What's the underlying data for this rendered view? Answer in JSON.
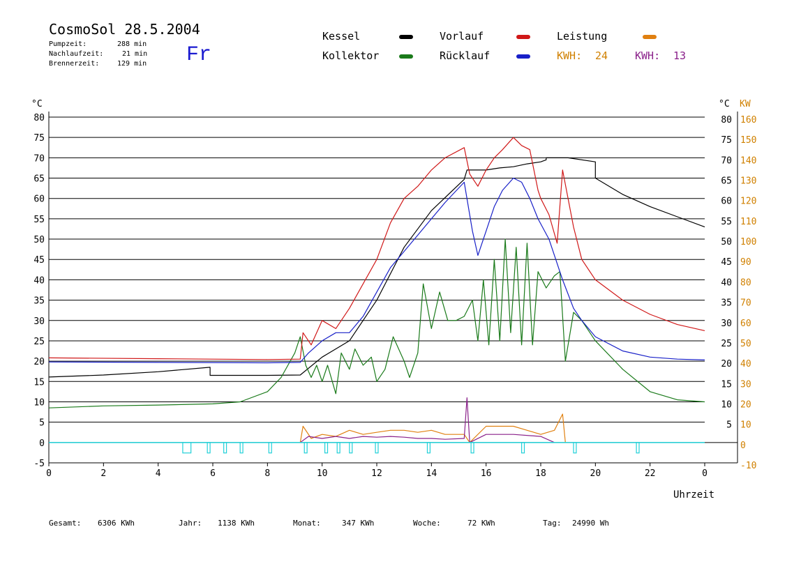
{
  "header": {
    "title": "CosmoSol 28.5.2004",
    "stats": [
      {
        "label": "Pumpzeit:",
        "value": "288 min"
      },
      {
        "label": "Nachlaufzeit:",
        "value": "21 min"
      },
      {
        "label": "Brennerzeit:",
        "value": "129 min"
      }
    ],
    "day": "Fr"
  },
  "legend": {
    "kessel": "Kessel",
    "kollektor": "Kollektor",
    "vorlauf": "Vorlauf",
    "ruecklauf": "Rücklauf",
    "leistung": "Leistung",
    "kwh1_label": "KWH:",
    "kwh1_value": "24",
    "kwh2_label": "KWH:",
    "kwh2_value": "13"
  },
  "colors": {
    "kessel": "#000000",
    "kollektor": "#1a7a1a",
    "vorlauf": "#d01818",
    "ruecklauf": "#1820c8",
    "leistung": "#e08010",
    "kwh2": "#8a208a",
    "pump": "#20d0d8",
    "right_axis": "#d08000"
  },
  "footer": [
    {
      "label": "Gesamt:",
      "value": "6306 KWh"
    },
    {
      "label": "Jahr:",
      "value": "1138 KWh"
    },
    {
      "label": "Monat:",
      "value": "347 KWh"
    },
    {
      "label": "Woche:",
      "value": "72 KWh"
    },
    {
      "label": "Tag:",
      "value": "24990 Wh"
    }
  ],
  "chart_data": {
    "type": "line",
    "xlabel": "Uhrzeit",
    "ylabel_left": "°C",
    "ylabel_right_1": "°C",
    "ylabel_right_2": "KW",
    "xlim": [
      0,
      24
    ],
    "ylim": [
      -5,
      80
    ],
    "x_ticks": [
      "0",
      "2",
      "4",
      "6",
      "8",
      "10",
      "12",
      "14",
      "16",
      "18",
      "20",
      "22",
      "0"
    ],
    "y_ticks_left": [
      "80",
      "75",
      "70",
      "65",
      "60",
      "55",
      "50",
      "45",
      "40",
      "35",
      "30",
      "25",
      "20",
      "15",
      "10",
      "5",
      "0",
      "-5"
    ],
    "y_ticks_right_temp": [
      "80",
      "75",
      "70",
      "65",
      "60",
      "55",
      "50",
      "45",
      "40",
      "35",
      "30",
      "25",
      "20",
      "15",
      "10",
      "5"
    ],
    "y_ticks_right_power": [
      "160",
      "150",
      "140",
      "130",
      "120",
      "110",
      "100",
      "90",
      "80",
      "70",
      "60",
      "50",
      "40",
      "30",
      "20",
      "10",
      "0",
      "-10"
    ],
    "grid": true,
    "series": [
      {
        "name": "Kessel",
        "color": "#000000",
        "points": [
          [
            0,
            16.1
          ],
          [
            2,
            16.6
          ],
          [
            4,
            17.4
          ],
          [
            5.9,
            18.5
          ],
          [
            5.9,
            16.5
          ],
          [
            8,
            16.5
          ],
          [
            9.2,
            16.6
          ],
          [
            10,
            21
          ],
          [
            11,
            25
          ],
          [
            12,
            35
          ],
          [
            13,
            48
          ],
          [
            14,
            57
          ],
          [
            15.2,
            64.7
          ],
          [
            15.3,
            67
          ],
          [
            16,
            67
          ],
          [
            16.5,
            67.5
          ],
          [
            17,
            67.8
          ],
          [
            17.5,
            68.5
          ],
          [
            18,
            69
          ],
          [
            18.2,
            69.5
          ],
          [
            18.2,
            70
          ],
          [
            19,
            70
          ],
          [
            20,
            69
          ],
          [
            20,
            65
          ],
          [
            21,
            61
          ],
          [
            22,
            58
          ],
          [
            23,
            55.5
          ],
          [
            24,
            53
          ]
        ]
      },
      {
        "name": "Kollektor",
        "color": "#1a7a1a",
        "points": [
          [
            0,
            8.5
          ],
          [
            2,
            9
          ],
          [
            4,
            9.2
          ],
          [
            6,
            9.5
          ],
          [
            7,
            10
          ],
          [
            8,
            12.5
          ],
          [
            8.5,
            16
          ],
          [
            9,
            22
          ],
          [
            9.2,
            26
          ],
          [
            9.4,
            19
          ],
          [
            9.6,
            16
          ],
          [
            9.8,
            19
          ],
          [
            10,
            15
          ],
          [
            10.2,
            19
          ],
          [
            10.5,
            12
          ],
          [
            10.7,
            22
          ],
          [
            11,
            18
          ],
          [
            11.2,
            23
          ],
          [
            11.5,
            19
          ],
          [
            11.8,
            21
          ],
          [
            12,
            15
          ],
          [
            12.3,
            18
          ],
          [
            12.6,
            26
          ],
          [
            13,
            20
          ],
          [
            13.2,
            16
          ],
          [
            13.5,
            22
          ],
          [
            13.7,
            39
          ],
          [
            14,
            28
          ],
          [
            14.3,
            37
          ],
          [
            14.6,
            30
          ],
          [
            14.9,
            30
          ],
          [
            15.2,
            31
          ],
          [
            15.5,
            35
          ],
          [
            15.7,
            25
          ],
          [
            15.9,
            40
          ],
          [
            16.1,
            24
          ],
          [
            16.3,
            45
          ],
          [
            16.5,
            25
          ],
          [
            16.7,
            50
          ],
          [
            16.9,
            27
          ],
          [
            17.1,
            48
          ],
          [
            17.3,
            24
          ],
          [
            17.5,
            49
          ],
          [
            17.7,
            24
          ],
          [
            17.9,
            42
          ],
          [
            18.2,
            38
          ],
          [
            18.5,
            41
          ],
          [
            18.7,
            42
          ],
          [
            18.9,
            20
          ],
          [
            19.2,
            32
          ],
          [
            19.5,
            30
          ],
          [
            20,
            25
          ],
          [
            21,
            18
          ],
          [
            22,
            12.5
          ],
          [
            23,
            10.5
          ],
          [
            24,
            10
          ]
        ]
      },
      {
        "name": "Vorlauf",
        "color": "#d01818",
        "points": [
          [
            0,
            20.8
          ],
          [
            4,
            20.6
          ],
          [
            8,
            20.4
          ],
          [
            9.2,
            20.5
          ],
          [
            9.3,
            27
          ],
          [
            9.6,
            24
          ],
          [
            10,
            30
          ],
          [
            10.5,
            28
          ],
          [
            11,
            33
          ],
          [
            11.5,
            39
          ],
          [
            12,
            45
          ],
          [
            12.5,
            54
          ],
          [
            13,
            60
          ],
          [
            13.5,
            63
          ],
          [
            14,
            67
          ],
          [
            14.5,
            70
          ],
          [
            15.2,
            72.5
          ],
          [
            15.4,
            66
          ],
          [
            15.7,
            63
          ],
          [
            16,
            67
          ],
          [
            16.3,
            70
          ],
          [
            16.6,
            72
          ],
          [
            17,
            75
          ],
          [
            17.3,
            73
          ],
          [
            17.6,
            72
          ],
          [
            17.9,
            62
          ],
          [
            18,
            60
          ],
          [
            18.3,
            56
          ],
          [
            18.6,
            49
          ],
          [
            18.8,
            67
          ],
          [
            19.2,
            53
          ],
          [
            19.5,
            45
          ],
          [
            20,
            40
          ],
          [
            21,
            35
          ],
          [
            22,
            31.5
          ],
          [
            23,
            29
          ],
          [
            24,
            27.5
          ]
        ]
      },
      {
        "name": "Rücklauf",
        "color": "#1820c8",
        "points": [
          [
            0,
            19.8
          ],
          [
            4,
            19.7
          ],
          [
            8,
            19.6
          ],
          [
            9.2,
            19.7
          ],
          [
            9.5,
            22
          ],
          [
            10,
            25
          ],
          [
            10.5,
            27
          ],
          [
            11,
            27
          ],
          [
            11.5,
            31
          ],
          [
            12,
            37
          ],
          [
            12.5,
            43
          ],
          [
            13,
            47
          ],
          [
            13.5,
            51
          ],
          [
            14,
            55
          ],
          [
            14.5,
            59
          ],
          [
            15.2,
            64
          ],
          [
            15.5,
            52
          ],
          [
            15.7,
            46
          ],
          [
            16,
            52
          ],
          [
            16.3,
            58
          ],
          [
            16.6,
            62
          ],
          [
            17,
            65
          ],
          [
            17.3,
            64
          ],
          [
            17.6,
            60
          ],
          [
            17.9,
            55
          ],
          [
            18.3,
            50
          ],
          [
            18.6,
            44
          ],
          [
            18.8,
            40
          ],
          [
            19.2,
            33
          ],
          [
            19.5,
            30
          ],
          [
            20,
            26
          ],
          [
            21,
            22.5
          ],
          [
            22,
            21
          ],
          [
            23,
            20.5
          ],
          [
            24,
            20.3
          ]
        ]
      },
      {
        "name": "Leistung",
        "color": "#e08010",
        "points": [
          [
            9.2,
            0
          ],
          [
            9.3,
            4
          ],
          [
            9.6,
            1
          ],
          [
            10,
            2
          ],
          [
            10.5,
            1.5
          ],
          [
            11,
            3
          ],
          [
            11.5,
            2
          ],
          [
            12,
            2.5
          ],
          [
            12.5,
            3
          ],
          [
            13,
            3
          ],
          [
            13.5,
            2.5
          ],
          [
            14,
            3
          ],
          [
            14.5,
            2
          ],
          [
            15.2,
            2
          ],
          [
            15.4,
            0
          ],
          [
            16,
            4
          ],
          [
            16.5,
            4
          ],
          [
            17,
            4
          ],
          [
            17.5,
            3
          ],
          [
            18,
            2
          ],
          [
            18.5,
            3
          ],
          [
            18.8,
            7
          ],
          [
            18.9,
            0
          ]
        ]
      },
      {
        "name": "KWH 13",
        "color": "#8a208a",
        "points": [
          [
            9.2,
            0
          ],
          [
            9.5,
            1.5
          ],
          [
            10,
            1
          ],
          [
            10.5,
            1.5
          ],
          [
            11,
            1
          ],
          [
            11.5,
            1.5
          ],
          [
            12,
            1.3
          ],
          [
            12.5,
            1.5
          ],
          [
            13,
            1.3
          ],
          [
            13.5,
            1
          ],
          [
            14,
            1
          ],
          [
            14.5,
            0.8
          ],
          [
            15.2,
            1
          ],
          [
            15.3,
            11
          ],
          [
            15.4,
            0
          ],
          [
            16,
            2
          ],
          [
            17,
            2
          ],
          [
            18,
            1.5
          ],
          [
            18.5,
            0
          ]
        ]
      }
    ],
    "pump_segments": [
      [
        4.9,
        5.2
      ],
      [
        5.8,
        5.9
      ],
      [
        6.4,
        6.5
      ],
      [
        7.0,
        7.1
      ],
      [
        8.05,
        8.15
      ],
      [
        9.35,
        9.45
      ],
      [
        10.1,
        10.2
      ],
      [
        10.55,
        10.65
      ],
      [
        11.0,
        11.1
      ],
      [
        11.95,
        12.05
      ],
      [
        13.85,
        13.95
      ],
      [
        15.45,
        15.55
      ],
      [
        17.3,
        17.4
      ],
      [
        19.2,
        19.3
      ],
      [
        21.5,
        21.6
      ]
    ]
  }
}
